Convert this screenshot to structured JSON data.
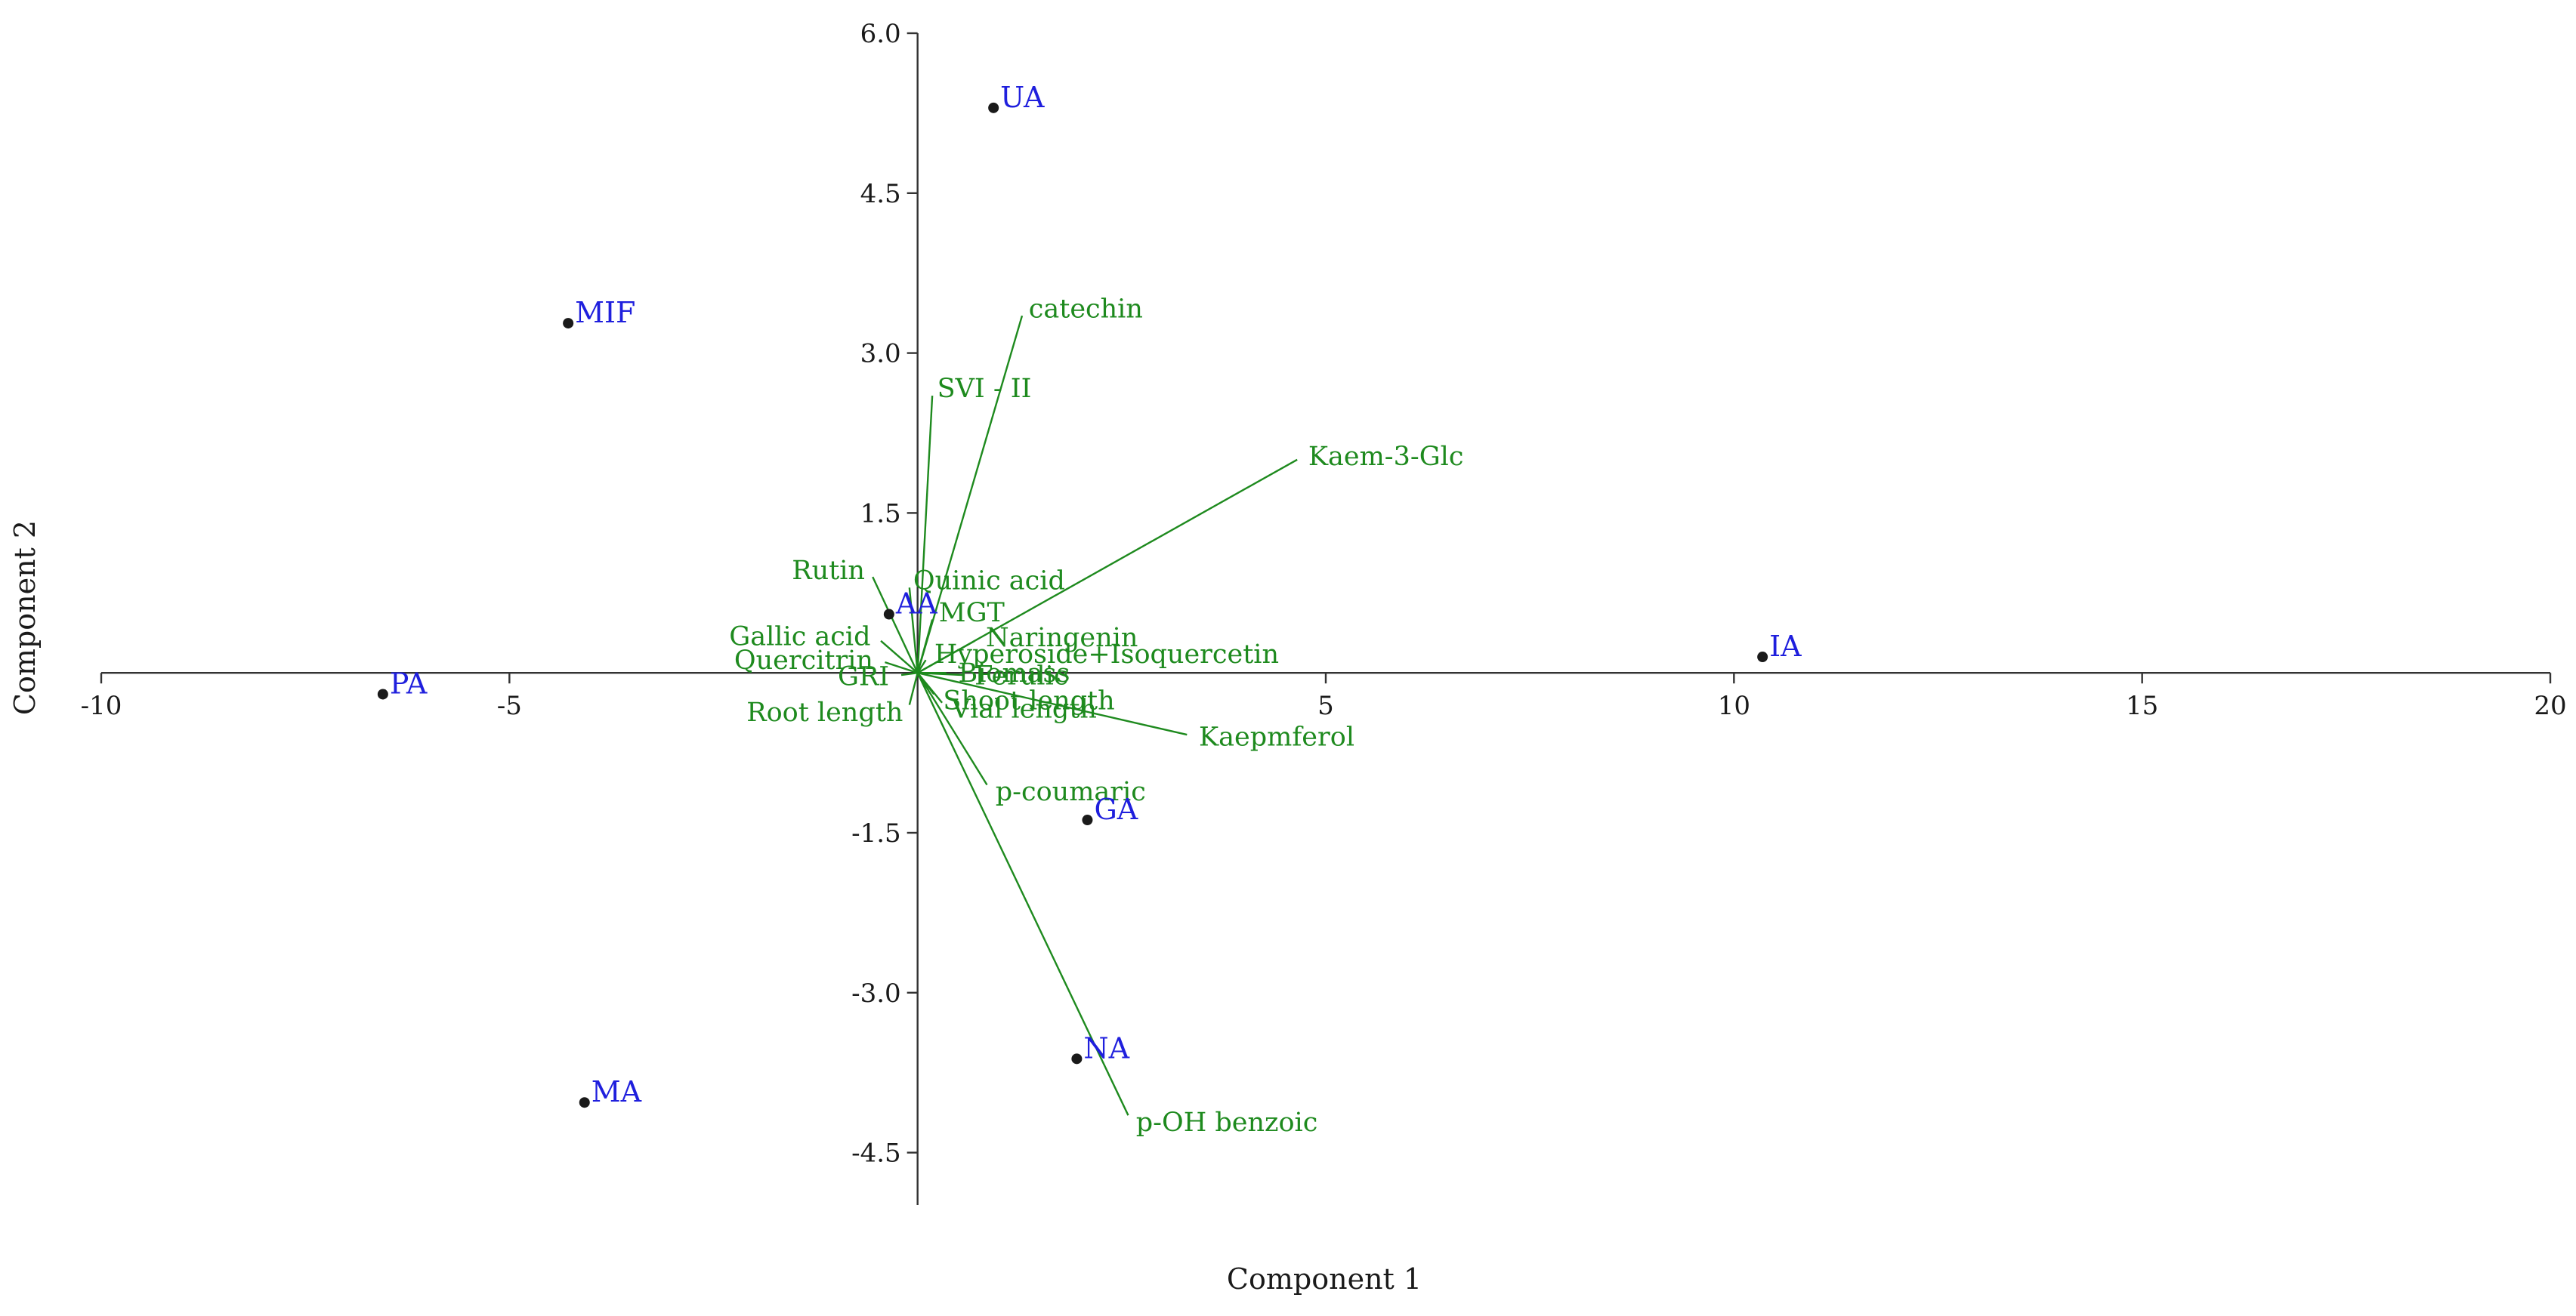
{
  "chart_data": {
    "type": "scatter",
    "subtype": "biplot",
    "title": "",
    "xlabel": "Component 1",
    "ylabel": "Component 2",
    "xlim": [
      -10,
      20
    ],
    "ylim": [
      -5.0,
      6.0
    ],
    "x_ticks": [
      -10,
      -5,
      5,
      10,
      15,
      20
    ],
    "x_tick_labels": [
      "-10",
      "-5",
      "5",
      "10",
      "15",
      "20"
    ],
    "y_ticks": [
      6.0,
      4.5,
      3.0,
      1.5,
      -1.5,
      -3.0,
      -4.5
    ],
    "y_tick_labels": [
      "6.0",
      "4.5",
      "3.0",
      "1.5",
      "-1.5",
      "-3.0",
      "-4.5"
    ],
    "grid": false,
    "colors": {
      "points": "#1a1a1a",
      "point_labels": "#1f1fdd",
      "vectors": "#1e8a1e",
      "axes": "#333333"
    },
    "points": [
      {
        "label": "UA",
        "x": 0.93,
        "y": 5.3
      },
      {
        "label": "MIF",
        "x": -4.28,
        "y": 3.28
      },
      {
        "label": "AA",
        "x": -0.35,
        "y": 0.55
      },
      {
        "label": "PA",
        "x": -6.55,
        "y": -0.2
      },
      {
        "label": "IA",
        "x": 10.35,
        "y": 0.15
      },
      {
        "label": "GA",
        "x": 2.08,
        "y": -1.38
      },
      {
        "label": "NA",
        "x": 1.95,
        "y": -3.62
      },
      {
        "label": "MA",
        "x": -4.08,
        "y": -4.03
      }
    ],
    "vectors": [
      {
        "label": "catechin",
        "x": 1.28,
        "y": 3.35
      },
      {
        "label": "SVI - II",
        "x": 0.18,
        "y": 2.6
      },
      {
        "label": "Kaem-3-Glc",
        "x": 4.65,
        "y": 2.0
      },
      {
        "label": "Rutin",
        "x": -0.55,
        "y": 0.9
      },
      {
        "label": "Quinic acid",
        "x": -0.1,
        "y": 0.8
      },
      {
        "label": "MGT",
        "x": 0.18,
        "y": 0.5
      },
      {
        "label": "Gallic acid",
        "x": -0.45,
        "y": 0.3
      },
      {
        "label": "Naringenin",
        "x": 0.7,
        "y": 0.3
      },
      {
        "label": "Quercitrin",
        "x": -0.4,
        "y": 0.1
      },
      {
        "label": "Hyperoside+Isoquercetin",
        "x": 0.1,
        "y": 0.12
      },
      {
        "label": "Biomass",
        "x": 0.35,
        "y": 0.0
      },
      {
        "label": "GRI",
        "x": -0.2,
        "y": -0.02
      },
      {
        "label": "Ferulic",
        "x": 0.55,
        "y": -0.02
      },
      {
        "label": "Shoot length",
        "x": 0.2,
        "y": -0.2
      },
      {
        "label": "Root length",
        "x": -0.1,
        "y": -0.3
      },
      {
        "label": "Vial length",
        "x": 0.3,
        "y": -0.28
      },
      {
        "label": "Kaepmferol",
        "x": 3.3,
        "y": -0.58
      },
      {
        "label": "p-coumaric",
        "x": 0.85,
        "y": -1.05
      },
      {
        "label": "p-OH benzoic",
        "x": 2.58,
        "y": -4.15
      }
    ]
  }
}
